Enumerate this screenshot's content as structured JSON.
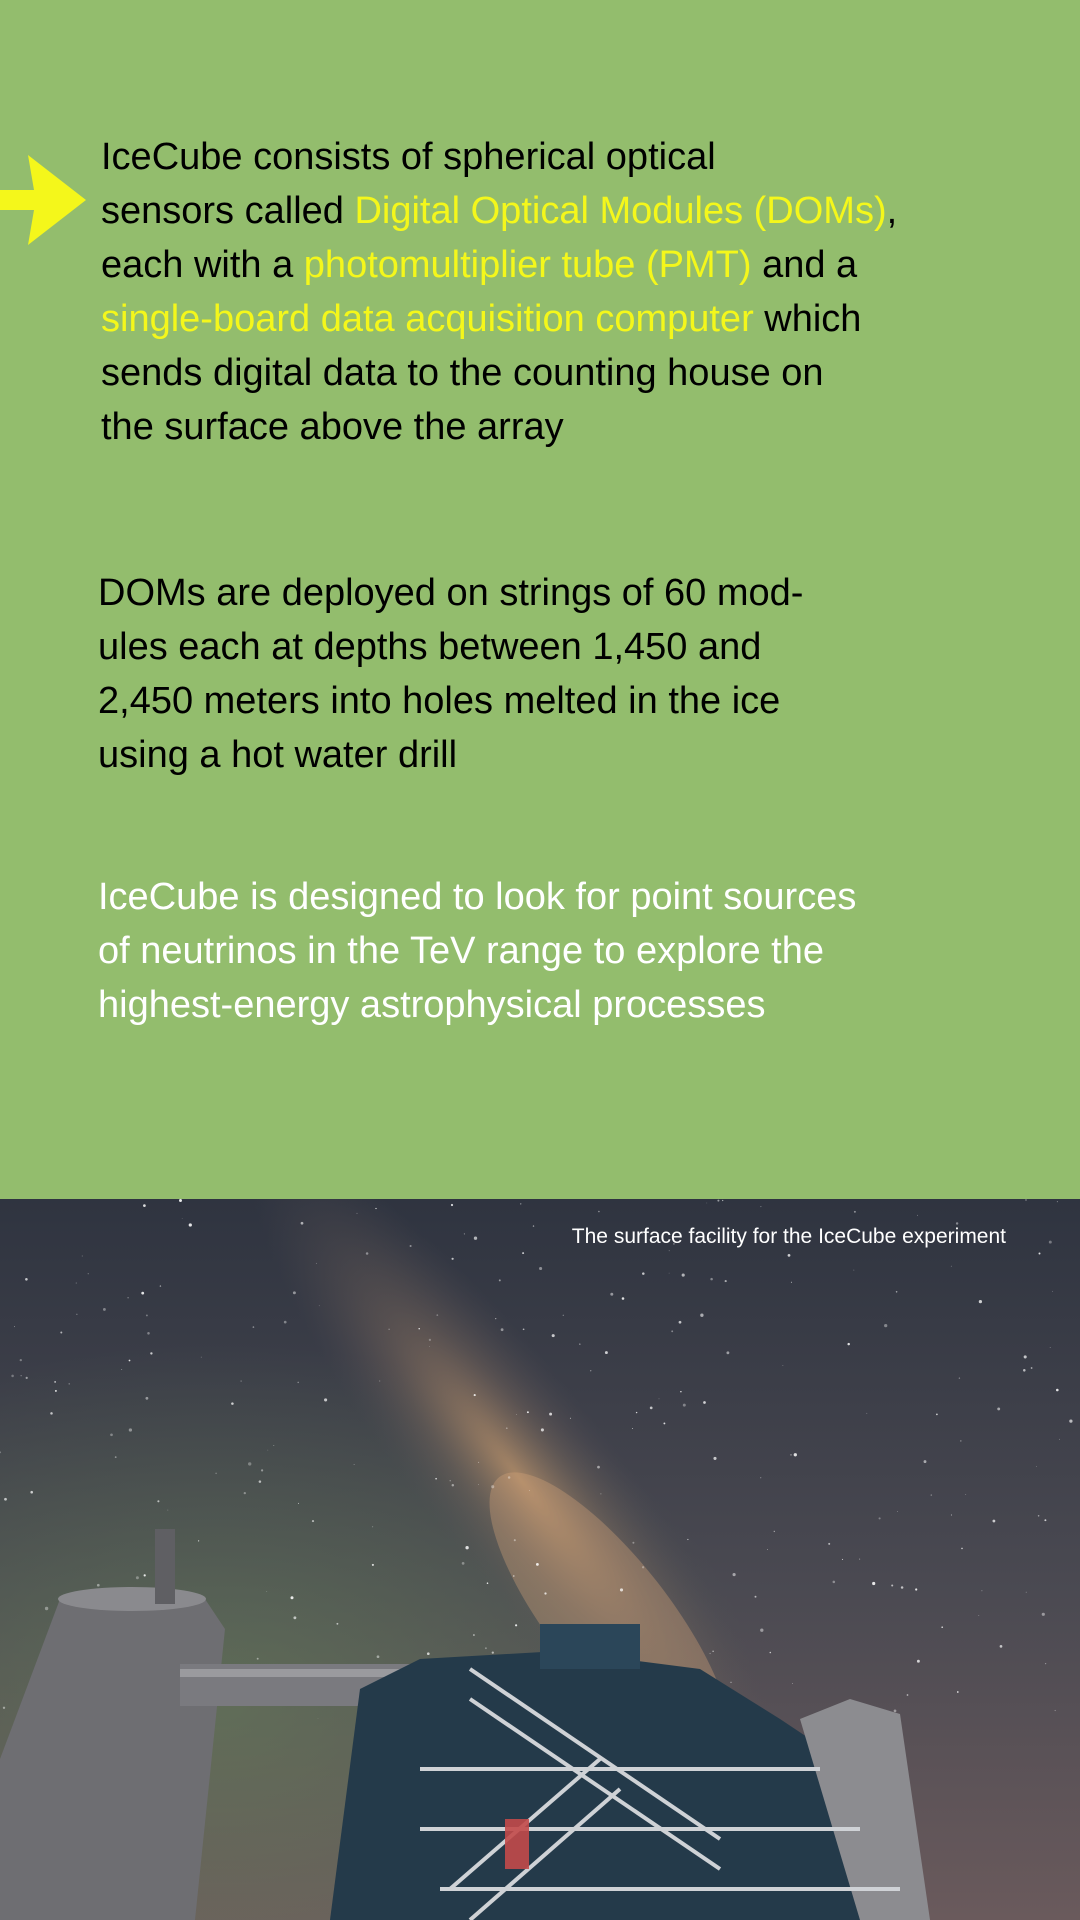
{
  "paragraphs": {
    "p1": {
      "line1": "IceCube consists of spherical optical",
      "line2_prefix": "sensors called ",
      "line2_highlight": "Digital Optical Modules (DOMs)",
      "line2_suffix": ",",
      "line3_prefix": "each with a ",
      "line3_highlight": "photomultiplier tube (PMT)",
      "line3_suffix": " and a",
      "line4_highlight": "single-board data acquisition computer",
      "line4_suffix": " which",
      "line5": "sends digital data to the counting house on",
      "line6": "the surface above the array"
    },
    "p2": {
      "line1": "DOMs are deployed on strings of 60 mod-",
      "line2": "ules each at depths between 1,450 and",
      "line3": "2,450 meters into holes melted in the ice",
      "line4": "using a hot water drill"
    },
    "p3": {
      "line1": "IceCube is designed to look for point sources",
      "line2": "of neutrinos in the TeV range to explore the",
      "line3": "highest-energy astrophysical processes"
    }
  },
  "photo": {
    "caption": "The surface facility for the IceCube experiment",
    "subject": "IceCube surface facility under the Milky Way"
  },
  "colors": {
    "background": "#93bd6d",
    "highlight": "#f4f71b",
    "arrow": "#f4f71b"
  },
  "icons": {
    "arrow": "arrow-right-icon"
  }
}
